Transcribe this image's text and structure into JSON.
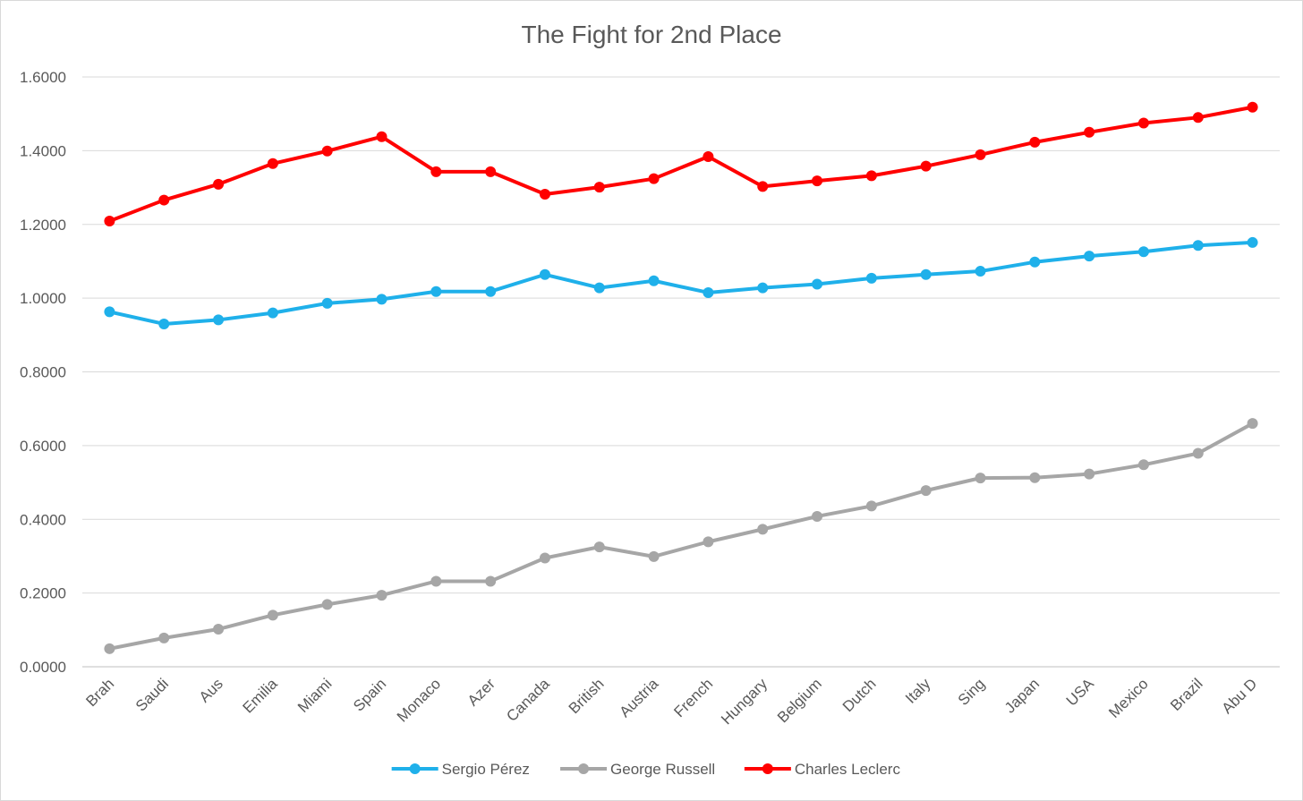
{
  "chart_data": {
    "type": "line",
    "title": "The Fight for 2nd Place",
    "xlabel": "",
    "ylabel": "",
    "ylim": [
      0,
      1.6
    ],
    "yticks": [
      "0.0000",
      "0.2000",
      "0.4000",
      "0.6000",
      "0.8000",
      "1.0000",
      "1.2000",
      "1.4000",
      "1.6000"
    ],
    "grid": true,
    "legend_position": "bottom",
    "categories": [
      "Brah",
      "Saudi",
      "Aus",
      "Emilia",
      "Miami",
      "Spain",
      "Monaco",
      "Azer",
      "Canada",
      "British",
      "Austria",
      "French",
      "Hungary",
      "Belgium",
      "Dutch",
      "Italy",
      "Sing",
      "Japan",
      "USA",
      "Mexico",
      "Brazil",
      "Abu D"
    ],
    "series": [
      {
        "name": "Sergio Pérez",
        "color": "#1fb0ea",
        "values": [
          0.963,
          0.93,
          0.941,
          0.96,
          0.986,
          0.997,
          1.018,
          1.018,
          1.064,
          1.028,
          1.047,
          1.015,
          1.028,
          1.038,
          1.054,
          1.064,
          1.073,
          1.098,
          1.114,
          1.126,
          1.143,
          1.151
        ]
      },
      {
        "name": "George Russell",
        "color": "#a6a6a6",
        "values": [
          0.049,
          0.078,
          0.102,
          0.14,
          0.169,
          0.194,
          0.232,
          0.232,
          0.295,
          0.325,
          0.299,
          0.339,
          0.373,
          0.408,
          0.436,
          0.478,
          0.512,
          0.513,
          0.523,
          0.548,
          0.579,
          0.66
        ]
      },
      {
        "name": "Charles Leclerc",
        "color": "#ff0000",
        "values": [
          1.209,
          1.266,
          1.309,
          1.365,
          1.399,
          1.438,
          1.343,
          1.343,
          1.282,
          1.301,
          1.324,
          1.384,
          1.303,
          1.318,
          1.332,
          1.358,
          1.389,
          1.423,
          1.45,
          1.475,
          1.49,
          1.518
        ]
      }
    ]
  }
}
